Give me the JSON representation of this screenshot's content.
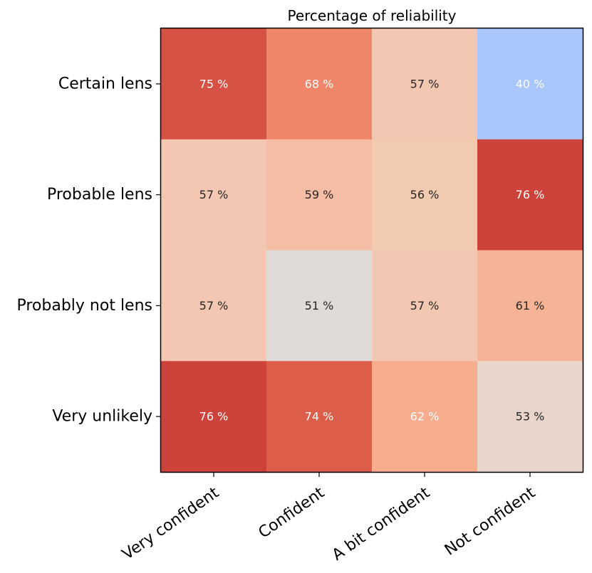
{
  "chart_data": {
    "type": "heatmap",
    "title": "Percentage of reliability",
    "xlabel": "",
    "ylabel": "",
    "x_categories": [
      "Very confident",
      "Confident",
      "A bit confident",
      "Not confident"
    ],
    "y_categories": [
      "Certain lens",
      "Probable lens",
      "Probably not lens",
      "Very unlikely"
    ],
    "value_suffix": " %",
    "values": [
      [
        75,
        68,
        57,
        40
      ],
      [
        57,
        59,
        56,
        76
      ],
      [
        57,
        51,
        57,
        61
      ],
      [
        76,
        74,
        62,
        53
      ]
    ],
    "colormap": "coolwarm",
    "vmin": 40,
    "vmax": 76,
    "cell_colors": [
      [
        "#d65244",
        "#ef8669",
        "#f3c7b1",
        "#aac7fd"
      ],
      [
        "#f3c7b1",
        "#f5bea4",
        "#f1caaf",
        "#cd423b"
      ],
      [
        "#f3c7b1",
        "#e0dbd8",
        "#f3c7b1",
        "#f7b396"
      ],
      [
        "#cd423b",
        "#dc5d4a",
        "#f7ac8e",
        "#e8d6cc"
      ]
    ],
    "label_colors": {
      "dark": "#262626",
      "light": "#ffffff"
    }
  }
}
